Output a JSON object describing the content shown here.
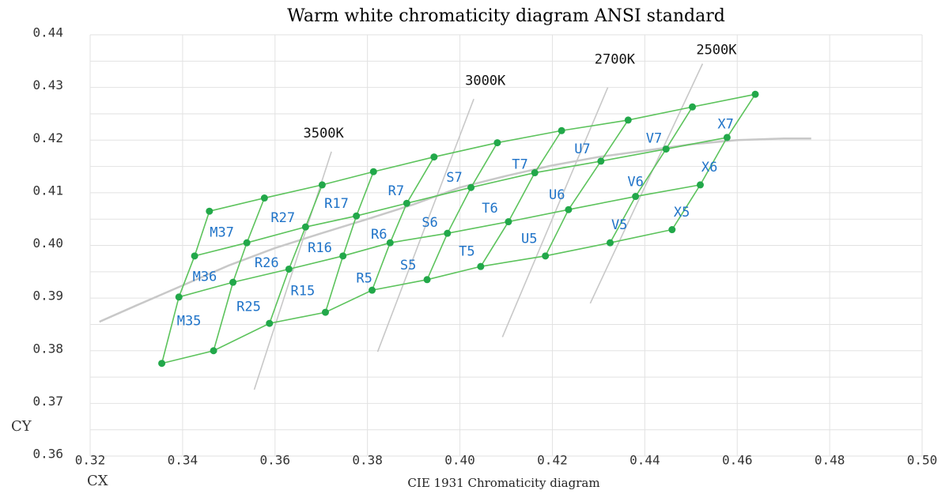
{
  "chart_data": {
    "type": "scatter",
    "title": "Warm white chromaticity diagram ANSI standard",
    "xlabel": "CX",
    "ylabel": "CY",
    "subtitle": "CIE 1931 Chromaticity diagram",
    "xlim": [
      0.32,
      0.5
    ],
    "ylim": [
      0.36,
      0.44
    ],
    "x_ticks": [
      "0.32",
      "0.34",
      "0.36",
      "0.38",
      "0.40",
      "0.42",
      "0.44",
      "0.46",
      "0.48",
      "0.50"
    ],
    "y_ticks": [
      "0.36",
      "0.37",
      "0.38",
      "0.39",
      "0.40",
      "0.41",
      "0.42",
      "0.43",
      "0.44"
    ],
    "grid": true,
    "colors": {
      "grid_lines": "#5cc35c",
      "grid_points": "#22a84a",
      "isotherms": "#c8c8c8",
      "bin_labels": "#1f73c8",
      "gridlines": "#e2e2e2"
    },
    "bin_grid": {
      "rows": [
        [
          [
            0.3355,
            0.3776
          ],
          [
            0.3467,
            0.38
          ],
          [
            0.3588,
            0.3852
          ],
          [
            0.3709,
            0.3873
          ],
          [
            0.381,
            0.3915
          ],
          [
            0.3929,
            0.3935
          ],
          [
            0.4045,
            0.396
          ],
          [
            0.4185,
            0.398
          ],
          [
            0.4325,
            0.4005
          ],
          [
            0.4459,
            0.403
          ]
        ],
        [
          [
            0.3392,
            0.3902
          ],
          [
            0.3509,
            0.393
          ],
          [
            0.363,
            0.3955
          ],
          [
            0.3747,
            0.398
          ],
          [
            0.3849,
            0.4005
          ],
          [
            0.3973,
            0.4023
          ],
          [
            0.4105,
            0.4045
          ],
          [
            0.4235,
            0.4068
          ],
          [
            0.438,
            0.4093
          ],
          [
            0.452,
            0.4115
          ]
        ],
        [
          [
            0.3426,
            0.398
          ],
          [
            0.3539,
            0.4005
          ],
          [
            0.3666,
            0.4035
          ],
          [
            0.3776,
            0.4056
          ],
          [
            0.3885,
            0.408
          ],
          [
            0.4024,
            0.411
          ],
          [
            0.4162,
            0.4138
          ],
          [
            0.4305,
            0.416
          ],
          [
            0.4446,
            0.4183
          ],
          [
            0.4578,
            0.4205
          ]
        ],
        [
          [
            0.3458,
            0.4065
          ],
          [
            0.3577,
            0.409
          ],
          [
            0.3702,
            0.4115
          ],
          [
            0.3813,
            0.414
          ],
          [
            0.3944,
            0.4168
          ],
          [
            0.4081,
            0.4195
          ],
          [
            0.422,
            0.4218
          ],
          [
            0.4364,
            0.4238
          ],
          [
            0.4503,
            0.4263
          ],
          [
            0.4639,
            0.4287
          ]
        ]
      ]
    },
    "bins": [
      {
        "label": "M35",
        "x": 0.3414,
        "y": 0.3856
      },
      {
        "label": "M36",
        "x": 0.3448,
        "y": 0.394
      },
      {
        "label": "M37",
        "x": 0.3485,
        "y": 0.4024
      },
      {
        "label": "R25",
        "x": 0.3543,
        "y": 0.3883
      },
      {
        "label": "R26",
        "x": 0.3582,
        "y": 0.3966
      },
      {
        "label": "R27",
        "x": 0.3617,
        "y": 0.4052
      },
      {
        "label": "R15",
        "x": 0.366,
        "y": 0.3913
      },
      {
        "label": "R16",
        "x": 0.3697,
        "y": 0.3995
      },
      {
        "label": "R17",
        "x": 0.3733,
        "y": 0.4079
      },
      {
        "label": "R5",
        "x": 0.3793,
        "y": 0.3937
      },
      {
        "label": "R6",
        "x": 0.3825,
        "y": 0.402
      },
      {
        "label": "R7",
        "x": 0.3862,
        "y": 0.4103
      },
      {
        "label": "S5",
        "x": 0.3888,
        "y": 0.3962
      },
      {
        "label": "S6",
        "x": 0.3935,
        "y": 0.4043
      },
      {
        "label": "S7",
        "x": 0.3988,
        "y": 0.4128
      },
      {
        "label": "T5",
        "x": 0.4015,
        "y": 0.3988
      },
      {
        "label": "T6",
        "x": 0.4065,
        "y": 0.407
      },
      {
        "label": "T7",
        "x": 0.413,
        "y": 0.4153
      },
      {
        "label": "U5",
        "x": 0.415,
        "y": 0.4012
      },
      {
        "label": "U6",
        "x": 0.421,
        "y": 0.4095
      },
      {
        "label": "U7",
        "x": 0.4265,
        "y": 0.4182
      },
      {
        "label": "V5",
        "x": 0.4345,
        "y": 0.4038
      },
      {
        "label": "V6",
        "x": 0.438,
        "y": 0.412
      },
      {
        "label": "V7",
        "x": 0.442,
        "y": 0.4203
      },
      {
        "label": "X5",
        "x": 0.448,
        "y": 0.4062
      },
      {
        "label": "X6",
        "x": 0.454,
        "y": 0.4148
      },
      {
        "label": "X7",
        "x": 0.4575,
        "y": 0.423
      }
    ],
    "isotherms": [
      {
        "label": "3500K",
        "from": [
          0.3555,
          0.3726
        ],
        "to": [
          0.3722,
          0.4178
        ],
        "label_x": 0.3705,
        "label_y": 0.4205
      },
      {
        "label": "3000K",
        "from": [
          0.3822,
          0.3798
        ],
        "to": [
          0.403,
          0.4278
        ],
        "label_x": 0.4055,
        "label_y": 0.4305
      },
      {
        "label": "2700K",
        "from": [
          0.4092,
          0.3826
        ],
        "to": [
          0.432,
          0.43
        ],
        "label_x": 0.4335,
        "label_y": 0.4345
      },
      {
        "label": "2500K",
        "from": [
          0.4282,
          0.389
        ],
        "to": [
          0.4525,
          0.4345
        ],
        "label_x": 0.4555,
        "label_y": 0.4363
      }
    ],
    "blackbody_locus": [
      [
        0.322,
        0.3855
      ],
      [
        0.33,
        0.3886
      ],
      [
        0.34,
        0.3924
      ],
      [
        0.35,
        0.3962
      ],
      [
        0.36,
        0.3995
      ],
      [
        0.37,
        0.4023
      ],
      [
        0.38,
        0.405
      ],
      [
        0.39,
        0.4078
      ],
      [
        0.4,
        0.411
      ],
      [
        0.41,
        0.4132
      ],
      [
        0.42,
        0.4152
      ],
      [
        0.43,
        0.4168
      ],
      [
        0.44,
        0.418
      ],
      [
        0.45,
        0.4192
      ],
      [
        0.46,
        0.42
      ],
      [
        0.47,
        0.4203
      ],
      [
        0.476,
        0.4203
      ]
    ]
  }
}
